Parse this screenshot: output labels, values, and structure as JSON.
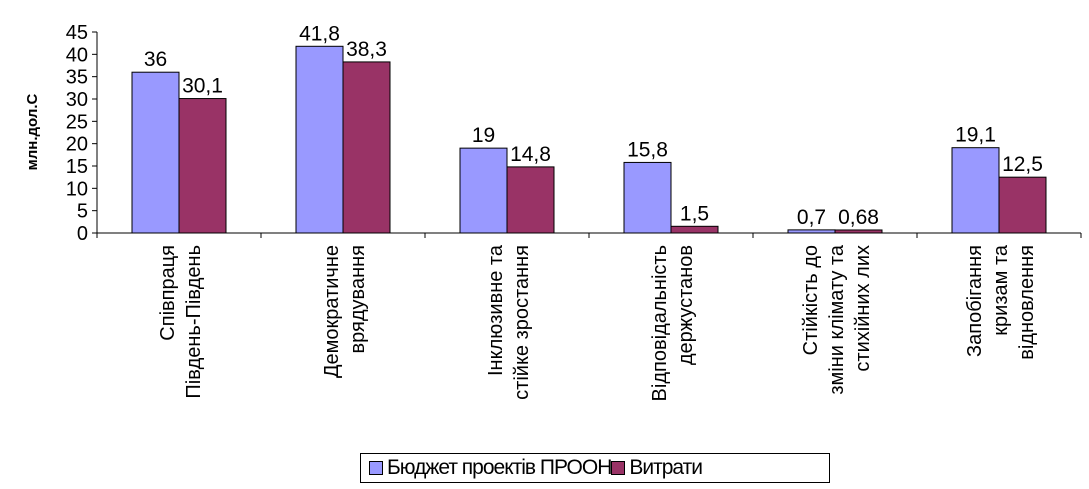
{
  "chart_data": {
    "type": "bar",
    "title": "",
    "ylabel": "млн.дол.С",
    "xlabel": "",
    "ylim": [
      0,
      45
    ],
    "yticks": [
      "0",
      "5",
      "10",
      "15",
      "20",
      "25",
      "30",
      "35",
      "40",
      "45"
    ],
    "grid": false,
    "legend_position": "bottom",
    "categories": [
      [
        "Співпраця",
        "Південь-Південь"
      ],
      [
        "Демократичне",
        "врядування"
      ],
      [
        "Інклюзивне та",
        "стійке зростання"
      ],
      [
        "Відповідальність",
        "держустанов"
      ],
      [
        "Стійкість до",
        "зміни клімату та",
        "стихійних лих"
      ],
      [
        "Запобігання",
        "кризам та",
        "відновлення"
      ]
    ],
    "series": [
      {
        "name": "Бюджет проектів ПРООН",
        "color": "#9999ff",
        "values": [
          36,
          41.8,
          19,
          15.8,
          0.7,
          19.1
        ],
        "labels": [
          "36",
          "41,8",
          "19",
          "15,8",
          "0,7",
          "19,1"
        ]
      },
      {
        "name": "Витрати",
        "color": "#993366",
        "values": [
          30.1,
          38.3,
          14.8,
          1.5,
          0.68,
          12.5
        ],
        "labels": [
          "30,1",
          "38,3",
          "14,8",
          "1,5",
          "0,68",
          "12,5"
        ]
      }
    ]
  }
}
